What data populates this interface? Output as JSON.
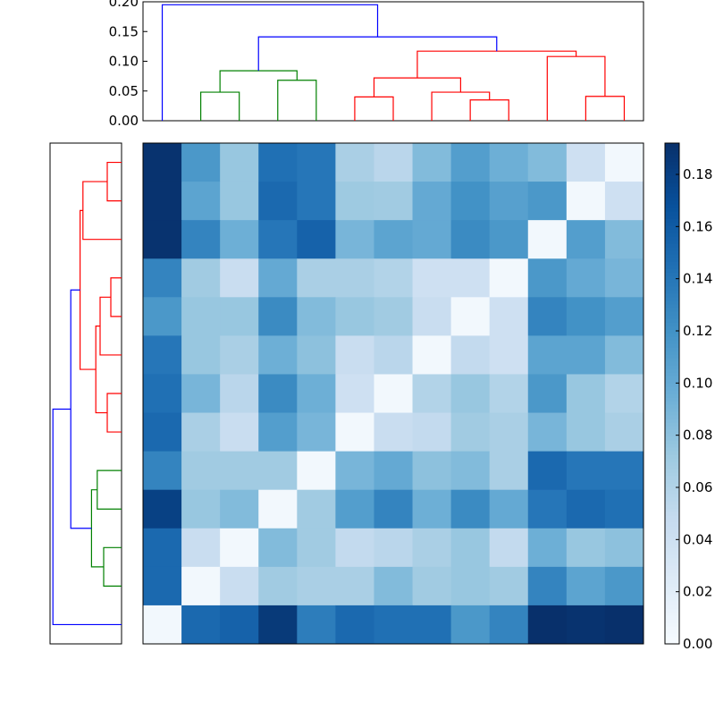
{
  "chart_data": [
    {
      "type": "dendrogram",
      "orientation": "top",
      "ylim": [
        0,
        0.2
      ],
      "yticks": [
        "0.00",
        "0.05",
        "0.10",
        "0.15",
        "0.20"
      ],
      "ytick_values": [
        0,
        0.05,
        0.1,
        0.15,
        0.2
      ],
      "colors": {
        "red": "#ff0000",
        "green": "#008000",
        "blue": "#0000ff"
      },
      "links": [
        {
          "a": 1.5,
          "b": 2.5,
          "h": 0.048,
          "ha": 0,
          "hb": 0,
          "color": "green"
        },
        {
          "a": 3.5,
          "b": 4.5,
          "h": 0.068,
          "ha": 0,
          "hb": 0,
          "color": "green"
        },
        {
          "a": 2.0,
          "b": 4.0,
          "h": 0.084,
          "ha": 0.048,
          "hb": 0.068,
          "color": "green"
        },
        {
          "a": 5.5,
          "b": 6.5,
          "h": 0.04,
          "ha": 0,
          "hb": 0,
          "color": "red"
        },
        {
          "a": 8.5,
          "b": 9.5,
          "h": 0.035,
          "ha": 0,
          "hb": 0,
          "color": "red"
        },
        {
          "a": 7.5,
          "b": 9.0,
          "h": 0.048,
          "ha": 0,
          "hb": 0.035,
          "color": "red"
        },
        {
          "a": 6.0,
          "b": 8.25,
          "h": 0.072,
          "ha": 0.04,
          "hb": 0.048,
          "color": "red"
        },
        {
          "a": 11.5,
          "b": 12.5,
          "h": 0.041,
          "ha": 0,
          "hb": 0,
          "color": "red"
        },
        {
          "a": 10.5,
          "b": 12.0,
          "h": 0.108,
          "ha": 0,
          "hb": 0.041,
          "color": "red"
        },
        {
          "a": 7.125,
          "b": 11.25,
          "h": 0.117,
          "ha": 0.072,
          "hb": 0.108,
          "color": "red"
        },
        {
          "a": 3.0,
          "b": 9.1875,
          "h": 0.141,
          "ha": 0.084,
          "hb": 0.117,
          "color": "blue"
        },
        {
          "a": 0.5,
          "b": 6.09375,
          "h": 0.195,
          "ha": 0,
          "hb": 0.141,
          "color": "blue"
        }
      ]
    },
    {
      "type": "dendrogram",
      "orientation": "left",
      "colors": {
        "red": "#ff0000",
        "green": "#008000",
        "blue": "#0000ff"
      },
      "links": [
        {
          "a": 0.5,
          "b": 1.5,
          "h": 0.2,
          "ha": 0,
          "hb": 0,
          "color": "red"
        },
        {
          "a": 1.0,
          "b": 2.5,
          "h": 0.54,
          "ha": 0.2,
          "hb": 0,
          "color": "red"
        },
        {
          "a": 3.5,
          "b": 4.5,
          "h": 0.15,
          "ha": 0,
          "hb": 0,
          "color": "red"
        },
        {
          "a": 4.0,
          "b": 5.5,
          "h": 0.3,
          "ha": 0.15,
          "hb": 0,
          "color": "red"
        },
        {
          "a": 6.5,
          "b": 7.5,
          "h": 0.2,
          "ha": 0,
          "hb": 0,
          "color": "red"
        },
        {
          "a": 4.75,
          "b": 7.0,
          "h": 0.36,
          "ha": 0.3,
          "hb": 0.2,
          "color": "red"
        },
        {
          "a": 1.75,
          "b": 5.875,
          "h": 0.58,
          "ha": 0.54,
          "hb": 0.36,
          "color": "red"
        },
        {
          "a": 8.5,
          "b": 9.5,
          "h": 0.34,
          "ha": 0,
          "hb": 0,
          "color": "green"
        },
        {
          "a": 10.5,
          "b": 11.5,
          "h": 0.25,
          "ha": 0,
          "hb": 0,
          "color": "green"
        },
        {
          "a": 9.0,
          "b": 11.0,
          "h": 0.42,
          "ha": 0.34,
          "hb": 0.25,
          "color": "green"
        },
        {
          "a": 3.8125,
          "b": 10.0,
          "h": 0.71,
          "ha": 0.58,
          "hb": 0.42,
          "color": "blue"
        },
        {
          "a": 6.90625,
          "b": 12.5,
          "h": 0.96,
          "ha": 0.71,
          "hb": 0,
          "color": "blue"
        }
      ]
    },
    {
      "type": "heatmap",
      "rows": 13,
      "cols": 13,
      "values": [
        [
          0.19,
          0.115,
          0.075,
          0.145,
          0.14,
          0.065,
          0.055,
          0.085,
          0.11,
          0.095,
          0.085,
          0.04,
          0.005
        ],
        [
          0.19,
          0.105,
          0.075,
          0.15,
          0.14,
          0.072,
          0.07,
          0.1,
          0.12,
          0.108,
          0.115,
          0.005,
          0.04
        ],
        [
          0.19,
          0.13,
          0.095,
          0.14,
          0.155,
          0.09,
          0.105,
          0.1,
          0.125,
          0.115,
          0.005,
          0.11,
          0.085
        ],
        [
          0.13,
          0.07,
          0.045,
          0.1,
          0.065,
          0.065,
          0.06,
          0.04,
          0.04,
          0.005,
          0.115,
          0.1,
          0.09
        ],
        [
          0.115,
          0.075,
          0.075,
          0.125,
          0.085,
          0.075,
          0.07,
          0.045,
          0.005,
          0.04,
          0.13,
          0.12,
          0.11
        ],
        [
          0.14,
          0.075,
          0.065,
          0.095,
          0.08,
          0.045,
          0.055,
          0.005,
          0.05,
          0.04,
          0.105,
          0.105,
          0.085
        ],
        [
          0.145,
          0.09,
          0.055,
          0.125,
          0.095,
          0.04,
          0.005,
          0.06,
          0.075,
          0.06,
          0.115,
          0.075,
          0.06
        ],
        [
          0.15,
          0.065,
          0.045,
          0.11,
          0.09,
          0.005,
          0.045,
          0.05,
          0.07,
          0.065,
          0.09,
          0.075,
          0.065
        ],
        [
          0.13,
          0.07,
          0.07,
          0.07,
          0.005,
          0.09,
          0.1,
          0.08,
          0.085,
          0.065,
          0.15,
          0.14,
          0.14
        ],
        [
          0.18,
          0.075,
          0.085,
          0.005,
          0.07,
          0.11,
          0.13,
          0.095,
          0.125,
          0.1,
          0.14,
          0.15,
          0.145
        ],
        [
          0.15,
          0.045,
          0.005,
          0.085,
          0.07,
          0.05,
          0.055,
          0.065,
          0.075,
          0.05,
          0.095,
          0.075,
          0.08
        ],
        [
          0.15,
          0.005,
          0.045,
          0.07,
          0.065,
          0.065,
          0.085,
          0.07,
          0.075,
          0.07,
          0.13,
          0.105,
          0.115
        ],
        [
          0.005,
          0.15,
          0.155,
          0.185,
          0.135,
          0.15,
          0.145,
          0.145,
          0.115,
          0.13,
          0.192,
          0.19,
          0.192
        ]
      ],
      "colorscale": [
        "#f7fbff",
        "#deebf7",
        "#c6dbef",
        "#9ecae1",
        "#6baed6",
        "#4292c6",
        "#2171b5",
        "#08519c",
        "#08306b"
      ],
      "vmin": 0,
      "vmax": 0.192,
      "colorbar_ticks": [
        "0.00",
        "0.02",
        "0.04",
        "0.06",
        "0.08",
        "0.10",
        "0.12",
        "0.14",
        "0.16",
        "0.18"
      ],
      "colorbar_tick_values": [
        0,
        0.02,
        0.04,
        0.06,
        0.08,
        0.1,
        0.12,
        0.14,
        0.16,
        0.18
      ]
    }
  ]
}
